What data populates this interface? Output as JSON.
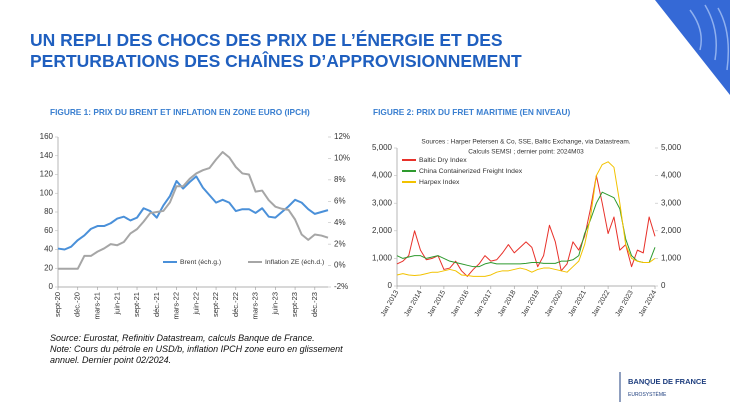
{
  "header": {
    "title_lines": [
      "UN REPLI DES CHOCS DES PRIX DE L’ÉNERGIE ET DES",
      "PERTURBATIONS DES CHAÎNES D’APPROVISIONNEMENT"
    ]
  },
  "notes": [
    "Source: Eurostat, Refinitiv Datastream, calculs Banque de France.",
    "Note: Cours du pétrole en USD/b, inflation IPCH zone euro en glissement annuel. Dernier point 02/2024."
  ],
  "logo": {
    "name": "BANQUE DE FRANCE",
    "sub": "EUROSYSTÈME"
  },
  "chart_data": [
    {
      "type": "line",
      "title": "FIGURE 1: PRIX DU BRENT ET INFLATION EN ZONE EURO (IPCH)",
      "categories": [
        "sept-20",
        null,
        null,
        "déc.-20",
        null,
        null,
        "mars-21",
        null,
        null,
        "juin-21",
        null,
        null,
        "sept-21",
        null,
        null,
        "déc.-21",
        null,
        null,
        "mars-22",
        null,
        null,
        "juin-22",
        null,
        null,
        "sept-22",
        null,
        null,
        "déc.-22",
        null,
        null,
        "mars-23",
        null,
        null,
        "juin-23",
        null,
        null,
        "sept-23",
        null,
        null,
        "déc.-23",
        null,
        null
      ],
      "series": [
        {
          "name": "Brent (éch.g.)",
          "color": "#4a90d9",
          "values": [
            41,
            40,
            43,
            50,
            55,
            62,
            65,
            65,
            68,
            73,
            75,
            71,
            74,
            84,
            81,
            74,
            87,
            97,
            113,
            105,
            112,
            118,
            106,
            98,
            90,
            93,
            90,
            81,
            83,
            83,
            79,
            84,
            75,
            74,
            80,
            86,
            93,
            90,
            83,
            78,
            80,
            82
          ]
        },
        {
          "name": "Inflation ZE (éch.d.)",
          "color": "#a6a6a6",
          "axis": "y2",
          "values": [
            -0.3,
            -0.3,
            -0.3,
            -0.3,
            0.9,
            0.9,
            1.3,
            1.6,
            2.0,
            1.9,
            2.2,
            3.0,
            3.4,
            4.1,
            4.9,
            5.0,
            5.1,
            5.9,
            7.4,
            7.4,
            8.1,
            8.6,
            8.9,
            9.1,
            9.9,
            10.6,
            10.1,
            9.2,
            8.6,
            8.5,
            6.9,
            7.0,
            6.1,
            5.5,
            5.3,
            5.2,
            4.3,
            2.9,
            2.4,
            2.9,
            2.8,
            2.6
          ]
        }
      ],
      "ylim": [
        0,
        160
      ],
      "yticks": [
        0,
        20,
        40,
        60,
        80,
        100,
        120,
        140,
        160
      ],
      "y2lim": [
        -2,
        12
      ],
      "y2ticks": [
        {
          "value": -2,
          "label": "-2%"
        },
        {
          "value": 0,
          "label": "0%"
        },
        {
          "value": 2,
          "label": "2%"
        },
        {
          "value": 4,
          "label": "4%"
        },
        {
          "value": 6,
          "label": "6%"
        },
        {
          "value": 8,
          "label": "8%"
        },
        {
          "value": 10,
          "label": "10%"
        },
        {
          "value": 12,
          "label": "12%"
        }
      ],
      "grid": false,
      "legend": "lower center"
    },
    {
      "type": "line",
      "title": "FIGURE 2: PRIX DU FRET MARITIME (EN NIVEAU)",
      "annotations": [
        "Sources : Harper Petersen & Co, SSE, Baltic Exchange, via Datastream.",
        "Calculs SEMSI ; dernier point: 2024M03"
      ],
      "categories": [
        "Jan 2013",
        null,
        null,
        null,
        "Jan 2014",
        null,
        null,
        null,
        "Jan 2015",
        null,
        null,
        null,
        "Jan 2016",
        null,
        null,
        null,
        "Jan 2017",
        null,
        null,
        null,
        "Jan 2018",
        null,
        null,
        null,
        "Jan 2019",
        null,
        null,
        null,
        "Jan 2020",
        null,
        null,
        null,
        "Jan 2021",
        null,
        null,
        null,
        "Jan 2022",
        null,
        null,
        null,
        "Jan 2023",
        null,
        null,
        null,
        "Jan 2024"
      ],
      "series": [
        {
          "name": "Baltic Dry Index",
          "color": "#e8312a",
          "values": [
            800,
            900,
            1100,
            2000,
            1300,
            950,
            1000,
            1100,
            600,
            650,
            900,
            550,
            350,
            600,
            800,
            1100,
            900,
            950,
            1200,
            1500,
            1200,
            1400,
            1600,
            1400,
            700,
            1100,
            2200,
            1600,
            550,
            800,
            1600,
            1300,
            1800,
            2800,
            4000,
            3000,
            1900,
            2500,
            1300,
            1500,
            700,
            1300,
            1200,
            2500,
            1800
          ]
        },
        {
          "name": "China Containerized Freight Index",
          "color": "#2e9a2e",
          "values": [
            1100,
            1000,
            1050,
            1100,
            1100,
            1000,
            1050,
            1100,
            1000,
            900,
            850,
            800,
            750,
            700,
            700,
            800,
            850,
            800,
            800,
            800,
            800,
            800,
            820,
            850,
            850,
            820,
            820,
            820,
            900,
            900,
            950,
            1100,
            1900,
            2400,
            3000,
            3400,
            3300,
            3200,
            2800,
            1700,
            1100,
            900,
            850,
            850,
            1400
          ]
        },
        {
          "name": "Harpex Index",
          "color": "#f2c200",
          "values": [
            400,
            450,
            400,
            380,
            400,
            450,
            500,
            500,
            550,
            600,
            550,
            400,
            380,
            350,
            350,
            350,
            400,
            500,
            550,
            550,
            600,
            650,
            600,
            500,
            600,
            650,
            650,
            600,
            550,
            500,
            700,
            900,
            1500,
            2500,
            4000,
            4400,
            4500,
            4300,
            3000,
            1500,
            1000,
            900,
            850,
            850,
            1000
          ]
        }
      ],
      "ylim": [
        0,
        5000
      ],
      "yticks": [
        0,
        {
          "value": 1000,
          "label": "1,000"
        },
        {
          "value": 2000,
          "label": "2,000"
        },
        {
          "value": 3000,
          "label": "3,000"
        },
        {
          "value": 4000,
          "label": "4,000"
        },
        {
          "value": 5000,
          "label": "5,000"
        }
      ],
      "y2lim": [
        0,
        5000
      ],
      "y2ticks": [
        0,
        {
          "value": 1000,
          "label": "1,000"
        },
        {
          "value": 2000,
          "label": "2,000"
        },
        {
          "value": 3000,
          "label": "3,000"
        },
        {
          "value": 4000,
          "label": "4,000"
        },
        {
          "value": 5000,
          "label": "5,000"
        }
      ],
      "grid": false,
      "legend": "upper left"
    }
  ]
}
